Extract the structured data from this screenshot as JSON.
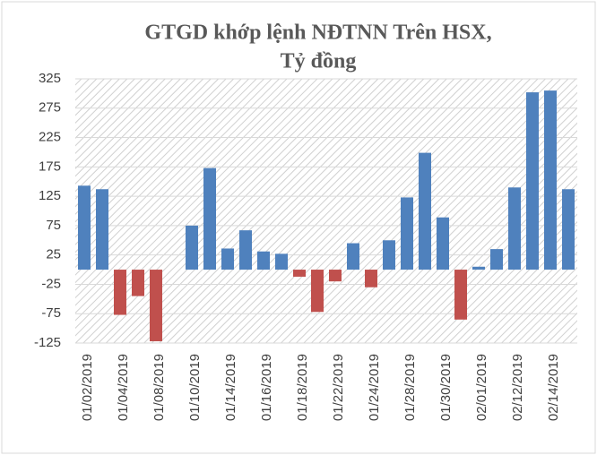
{
  "chart_data": {
    "type": "bar",
    "title": [
      "GTGD khớp lệnh NĐTNN Trên HSX,",
      "Tỷ đồng"
    ],
    "categories": [
      "01/02/2019",
      null,
      "01/04/2019",
      null,
      "01/08/2019",
      null,
      "01/10/2019",
      null,
      "01/14/2019",
      null,
      "01/16/2019",
      null,
      "01/18/2019",
      null,
      "01/22/2019",
      null,
      "01/24/2019",
      null,
      "01/28/2019",
      null,
      "01/30/2019",
      null,
      "02/01/2019",
      null,
      "02/12/2019",
      null,
      "02/14/2019",
      null
    ],
    "values": [
      143,
      137,
      -77,
      -45,
      -122,
      0,
      75,
      173,
      36,
      67,
      31,
      27,
      -12,
      -72,
      -20,
      45,
      -30,
      50,
      123,
      199,
      89,
      -85,
      5,
      35,
      140,
      302,
      305,
      137
    ],
    "positive_color": "#4f81bd",
    "negative_color": "#c0504d",
    "ylim": [
      -125,
      325
    ],
    "yticks": [
      -125,
      -75,
      -25,
      25,
      75,
      125,
      175,
      225,
      275,
      325
    ],
    "grid": true
  }
}
